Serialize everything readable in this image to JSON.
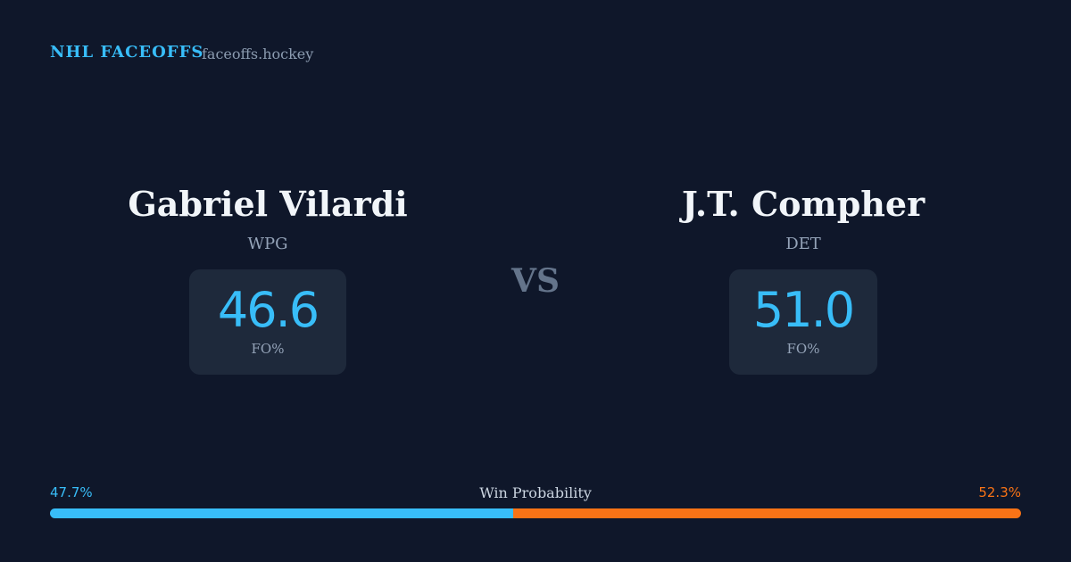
{
  "header": {
    "brand": "NHL FACEOFFS",
    "site": "faceoffs.hockey"
  },
  "players": [
    {
      "name": "Gabriel Vilardi",
      "team": "WPG",
      "fo_pct": "46.6",
      "fo_label": "FO%"
    },
    {
      "name": "J.T. Compher",
      "team": "DET",
      "fo_pct": "51.0",
      "fo_label": "FO%"
    }
  ],
  "versus": "VS",
  "win_probability": {
    "label": "Win Probability",
    "values": [
      47.7,
      52.3
    ],
    "value_labels": [
      "47.7%",
      "52.3%"
    ],
    "colors": [
      "#38bdf8",
      "#f97316"
    ]
  }
}
